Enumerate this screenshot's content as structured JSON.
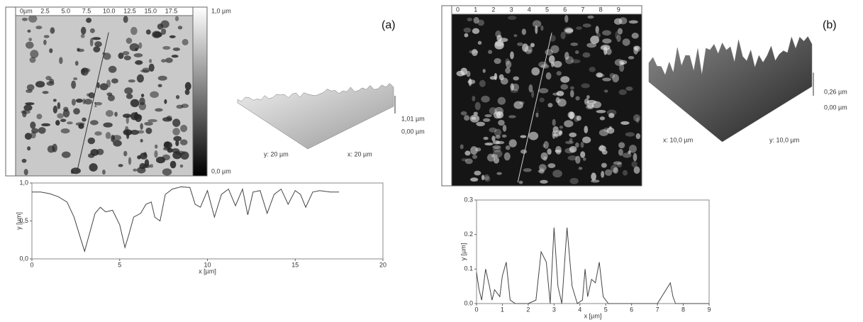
{
  "panels": [
    {
      "tag": "(a)",
      "image": {
        "ruler": [
          "0µm",
          "2.5",
          "5.0",
          "7.5",
          "10.0",
          "12.5",
          "15.0",
          "17.5"
        ],
        "marker": "1",
        "scale_top": "1,0 µm",
        "scale_bottom": "0,0 µm"
      },
      "surface": {
        "z_top": "1,01 µm",
        "z_bottom": "0,00 µm",
        "y_label": "y: 20 µm",
        "x_label": "x: 20 µm"
      },
      "profile": {
        "ylabel": "y [µm]",
        "xlabel": "x [µm]",
        "xlim": [
          0,
          20
        ],
        "xticks": [
          0,
          5,
          10,
          15,
          20
        ],
        "ylim": [
          0,
          1
        ],
        "yticks": [
          {
            "value": 0,
            "label": "0,0"
          },
          {
            "value": 0.5,
            "label": "0,5"
          },
          {
            "value": 1,
            "label": "1,0"
          }
        ],
        "x": [
          0,
          0.5,
          1,
          1.5,
          2,
          2.4,
          2.8,
          3.0,
          3.3,
          3.6,
          3.9,
          4.2,
          4.6,
          5.0,
          5.3,
          5.5,
          5.8,
          6.2,
          6.5,
          6.8,
          7.0,
          7.3,
          7.6,
          8.0,
          8.5,
          9.0,
          9.3,
          9.6,
          10.0,
          10.4,
          10.8,
          11.2,
          11.6,
          12.0,
          12.3,
          12.6,
          13.0,
          13.4,
          13.8,
          14.2,
          14.6,
          15.0,
          15.3,
          15.6,
          16.0,
          16.4,
          17.0,
          17.5
        ],
        "y": [
          0.88,
          0.88,
          0.86,
          0.82,
          0.75,
          0.55,
          0.25,
          0.1,
          0.35,
          0.6,
          0.68,
          0.62,
          0.64,
          0.45,
          0.15,
          0.3,
          0.55,
          0.6,
          0.72,
          0.75,
          0.55,
          0.5,
          0.85,
          0.92,
          0.95,
          0.94,
          0.72,
          0.68,
          0.9,
          0.55,
          0.85,
          0.92,
          0.7,
          0.92,
          0.58,
          0.88,
          0.9,
          0.6,
          0.85,
          0.92,
          0.72,
          0.9,
          0.85,
          0.68,
          0.88,
          0.9,
          0.88,
          0.88
        ]
      }
    },
    {
      "tag": "(b)",
      "image": {
        "ruler": [
          "0",
          "1",
          "2",
          "3",
          "4",
          "5",
          "6",
          "7",
          "8",
          "9"
        ],
        "marker": "1",
        "scale_top": "",
        "scale_bottom": ""
      },
      "surface": {
        "z_top": "0,26 µm",
        "z_bottom": "0,00 µm",
        "y_label": "y: 10,0 µm",
        "x_label": "x: 10,0 µm"
      },
      "profile": {
        "ylabel": "y [µm]",
        "xlabel": "x [µm]",
        "xlim": [
          0,
          9
        ],
        "xticks": [
          0,
          1,
          2,
          3,
          4,
          5,
          6,
          7,
          8,
          9
        ],
        "ylim": [
          0,
          0.3
        ],
        "yticks": [
          {
            "value": 0,
            "label": "0.0"
          },
          {
            "value": 0.1,
            "label": "0.1"
          },
          {
            "value": 0.2,
            "label": "0.2"
          },
          {
            "value": 0.3,
            "label": "0.3"
          }
        ],
        "x": [
          0,
          0.1,
          0.2,
          0.35,
          0.5,
          0.6,
          0.7,
          0.8,
          0.9,
          1.0,
          1.15,
          1.3,
          1.5,
          2.0,
          2.3,
          2.5,
          2.7,
          2.85,
          3.0,
          3.15,
          3.3,
          3.5,
          3.7,
          3.9,
          4.1,
          4.2,
          4.3,
          4.45,
          4.6,
          4.75,
          4.9,
          5.1,
          5.3,
          6.0,
          7.0,
          7.5,
          7.6,
          7.7,
          7.9,
          8.5,
          9.0
        ],
        "y": [
          0.09,
          0.04,
          0.01,
          0.1,
          0.05,
          0.01,
          0.04,
          0.03,
          0.02,
          0.08,
          0.12,
          0.01,
          0.0,
          0.0,
          0.01,
          0.15,
          0.12,
          0.0,
          0.22,
          0.05,
          0.0,
          0.22,
          0.05,
          0.0,
          0.01,
          0.1,
          0.02,
          0.07,
          0.06,
          0.12,
          0.02,
          0.0,
          0.0,
          0.0,
          0.0,
          0.06,
          0.02,
          0.0,
          0.0,
          0.0,
          0.0
        ]
      }
    }
  ]
}
